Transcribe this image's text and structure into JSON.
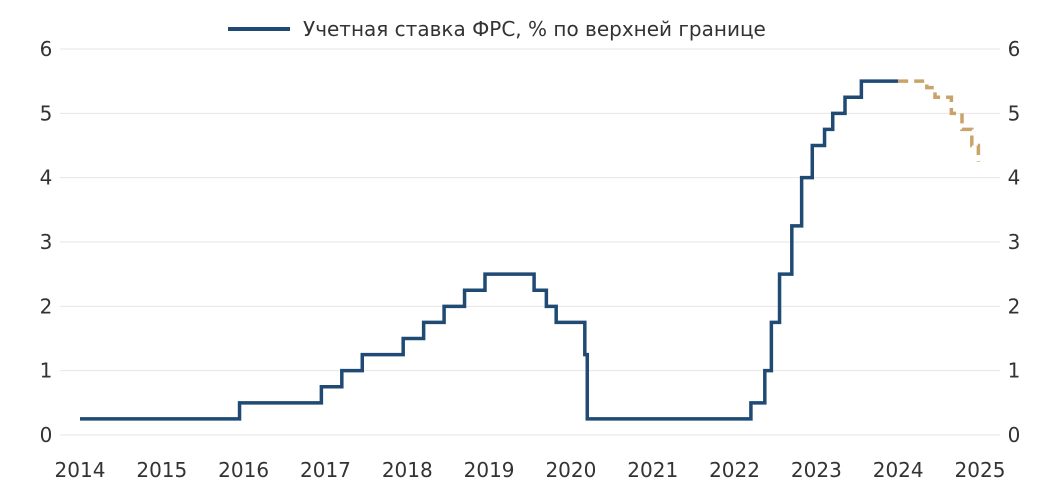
{
  "chart_data": {
    "type": "line",
    "title": "",
    "xlabel": "",
    "ylabel": "",
    "xlim": [
      2014,
      2025
    ],
    "ylim": [
      0,
      6
    ],
    "x_ticks": [
      "2014",
      "2015",
      "2016",
      "2017",
      "2018",
      "2019",
      "2020",
      "2021",
      "2022",
      "2023",
      "2024",
      "2025"
    ],
    "y_ticks": [
      "0",
      "1",
      "2",
      "3",
      "4",
      "5",
      "6"
    ],
    "y_axis_sides": "left-and-right",
    "grid": "horizontal",
    "legend_position": "top-center",
    "series": [
      {
        "name": "Учетная ставка ФРС, % по верхней границе",
        "color": "#1f4a73",
        "style": "solid-step",
        "x": [
          2014.0,
          2015.95,
          2016.95,
          2017.2,
          2017.45,
          2017.95,
          2018.2,
          2018.45,
          2018.7,
          2018.95,
          2019.55,
          2019.7,
          2019.82,
          2020.17,
          2020.2,
          2022.2,
          2022.37,
          2022.45,
          2022.55,
          2022.7,
          2022.82,
          2022.95,
          2023.1,
          2023.2,
          2023.35,
          2023.55,
          2024.0
        ],
        "y": [
          0.25,
          0.5,
          0.75,
          1.0,
          1.25,
          1.5,
          1.75,
          2.0,
          2.25,
          2.5,
          2.25,
          2.0,
          1.75,
          1.25,
          0.25,
          0.5,
          1.0,
          1.75,
          2.5,
          3.25,
          4.0,
          4.5,
          4.75,
          5.0,
          5.25,
          5.5,
          5.5
        ]
      },
      {
        "name": "",
        "color": "#c9a46a",
        "style": "dashed-step",
        "x": [
          2024.0,
          2024.35,
          2024.45,
          2024.65,
          2024.78,
          2024.9,
          2024.98
        ],
        "y": [
          5.5,
          5.4,
          5.25,
          5.0,
          4.75,
          4.5,
          4.25
        ]
      }
    ]
  }
}
